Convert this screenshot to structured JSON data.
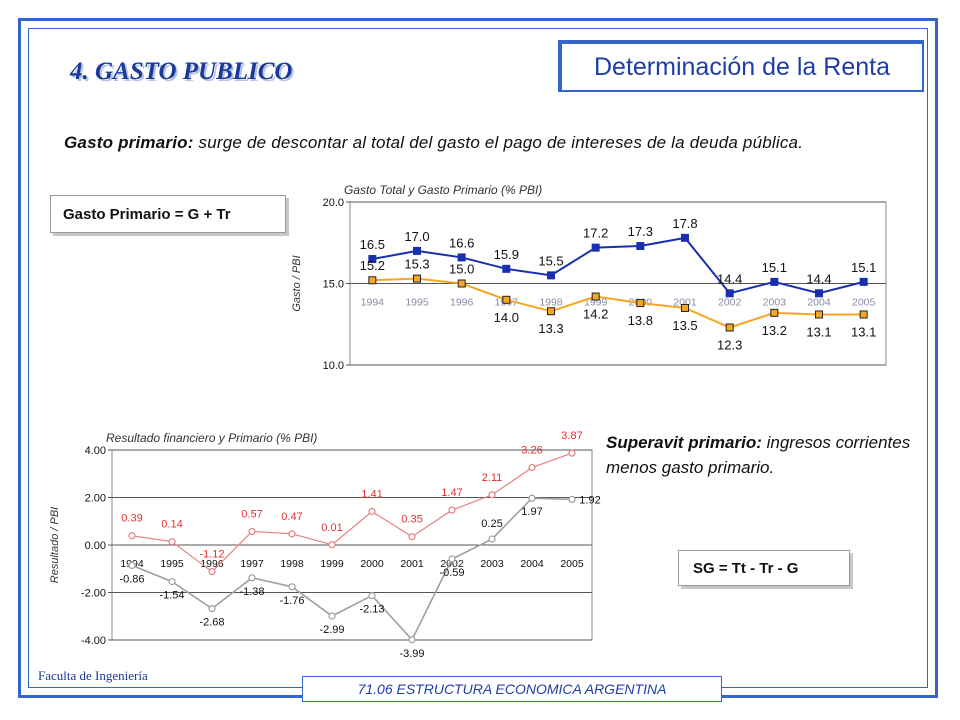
{
  "header": {
    "title": "Determinación de la Renta"
  },
  "section_title": "4. GASTO PUBLICO",
  "paragraph1": {
    "bold": "Gasto primario:",
    "text": " surge de descontar al total del gasto el pago de intereses de la deuda pública."
  },
  "formula1": "Gasto Primario = G + Tr",
  "paragraph2": {
    "bold": "Superavit primario:",
    "text": " ingresos corrientes menos gasto primario."
  },
  "formula2": "SG = Tt - Tr - G",
  "footer": {
    "left": "Faculta de Ingeniería",
    "course": "71.06 ESTRUCTURA ECONOMICA ARGENTINA"
  },
  "colors": {
    "accent": "#3366cc",
    "series_total": "#1a2fb0",
    "series_primary": "#f5a623",
    "series_fin": "#a0a0a0",
    "series_prim_result": "#e88080"
  },
  "chart_data": [
    {
      "type": "line",
      "title": "Gasto Total y Gasto Primario (% PBI)",
      "ylabel": "Gasto / PBI",
      "xlabel": "",
      "ylim": [
        10.0,
        20.0
      ],
      "yticks": [
        "20.0",
        "15.0",
        "10.0"
      ],
      "categories": [
        "1994",
        "1995",
        "1996",
        "1997",
        "1998",
        "1999",
        "2000",
        "2001",
        "2002",
        "2003",
        "2004",
        "2005"
      ],
      "series": [
        {
          "values": [
            16.5,
            17.0,
            16.6,
            15.9,
            15.5,
            17.2,
            17.3,
            17.8,
            14.4,
            15.1,
            14.4,
            15.1
          ],
          "labels": [
            "16.5",
            "17.0",
            "16.6",
            "15.9",
            "15.5",
            "17.2",
            "17.3",
            "17.8",
            "14.4",
            "15.1",
            "14.4",
            "15.1"
          ]
        },
        {
          "values": [
            15.2,
            15.3,
            15.0,
            14.0,
            13.3,
            14.2,
            13.8,
            13.5,
            12.3,
            13.2,
            13.1,
            13.1
          ],
          "labels": [
            "15.2",
            "15.3",
            "15.0",
            "14.0",
            "13.3",
            "14.2",
            "13.8",
            "13.5",
            "12.3",
            "13.2",
            "13.1",
            "13.1"
          ]
        }
      ],
      "grid": true
    },
    {
      "type": "line",
      "title": "Resultado financiero y Primario (% PBI)",
      "ylabel": "Resultado / PBI",
      "xlabel": "",
      "ylim": [
        -4.0,
        4.0
      ],
      "yticks": [
        "4.00",
        "2.00",
        "0.00",
        "-2.00",
        "-4.00"
      ],
      "categories": [
        "1994",
        "1995",
        "1996",
        "1997",
        "1998",
        "1999",
        "2000",
        "2001",
        "2002",
        "2003",
        "2004",
        "2005"
      ],
      "series": [
        {
          "values": [
            0.39,
            0.14,
            -1.12,
            0.57,
            0.47,
            0.01,
            1.41,
            0.35,
            1.47,
            2.11,
            3.26,
            3.87
          ],
          "labels": [
            "0.39",
            "0.14",
            "-1.12",
            "0.57",
            "0.47",
            "0.01",
            "1.41",
            "0.35",
            "1.47",
            "2.11",
            "3.26",
            "3.87"
          ]
        },
        {
          "values": [
            -0.86,
            -1.54,
            -2.68,
            -1.38,
            -1.76,
            -2.99,
            -2.13,
            -3.99,
            -0.59,
            0.25,
            1.97,
            1.92
          ],
          "labels": [
            "-0.86",
            "-1.54",
            "-2.68",
            "-1.38",
            "-1.76",
            "-2.99",
            "-2.13",
            "-3.99",
            "-0.59",
            "0.25",
            "1.97",
            "1.92"
          ]
        }
      ],
      "grid": true
    }
  ]
}
